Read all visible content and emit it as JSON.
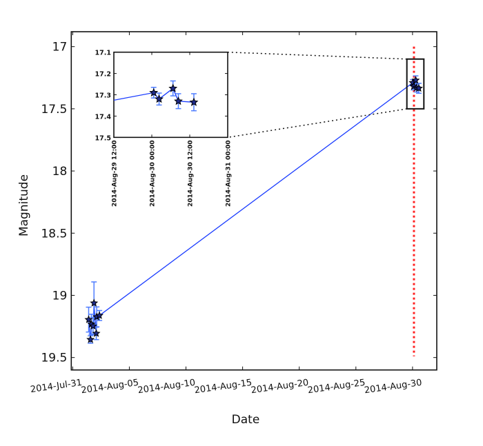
{
  "chart_data": [
    {
      "type": "scatter",
      "panel": "main",
      "xlabel": "Date",
      "ylabel": "Magnitude",
      "x_type": "date",
      "xlim": [
        "2014-07-30T21:00",
        "2014-09-01T03:20"
      ],
      "ylim": [
        16.88,
        19.6
      ],
      "y_inverted": true,
      "xticks": [
        {
          "date": "2014-07-31T00:00",
          "label": "2014-Jul-31"
        },
        {
          "date": "2014-08-05T00:00",
          "label": "2014-Aug-05"
        },
        {
          "date": "2014-08-10T00:00",
          "label": "2014-Aug-10"
        },
        {
          "date": "2014-08-15T00:00",
          "label": "2014-Aug-15"
        },
        {
          "date": "2014-08-20T00:00",
          "label": "2014-Aug-20"
        },
        {
          "date": "2014-08-25T00:00",
          "label": "2014-Aug-25"
        },
        {
          "date": "2014-08-30T00:00",
          "label": "2014-Aug-30"
        }
      ],
      "yticks": [
        {
          "value": 17,
          "label": "17"
        },
        {
          "value": 17.5,
          "label": "17.5"
        },
        {
          "value": 18,
          "label": "18"
        },
        {
          "value": 18.5,
          "label": "18.5"
        },
        {
          "value": 19,
          "label": "19"
        },
        {
          "value": 19.5,
          "label": "19.5"
        }
      ],
      "grid": false,
      "series": [
        {
          "marker": "star",
          "line": true,
          "points": [
            {
              "x": "2014-08-01T09:50",
              "y": 19.195,
              "err": 0.1
            },
            {
              "x": "2014-08-01T13:41",
              "y": 19.355,
              "err": 0.03
            },
            {
              "x": "2014-08-01T15:36",
              "y": 19.232,
              "err": 0.08
            },
            {
              "x": "2014-08-01T19:12",
              "y": 19.247,
              "err": 0.07
            },
            {
              "x": "2014-08-01T21:07",
              "y": 19.062,
              "err": 0.17
            },
            {
              "x": "2014-08-02T01:55",
              "y": 19.306,
              "err": 0.05
            },
            {
              "x": "2014-08-02T02:53",
              "y": 19.173,
              "err": 0.08
            },
            {
              "x": "2014-08-02T08:38",
              "y": 19.162,
              "err": 0.04
            },
            {
              "x": "2014-08-30T00:36",
              "y": 17.29,
              "err": 0.025
            },
            {
              "x": "2014-08-30T02:18",
              "y": 17.32,
              "err": 0.028
            },
            {
              "x": "2014-08-30T06:42",
              "y": 17.27,
              "err": 0.035
            },
            {
              "x": "2014-08-30T08:24",
              "y": 17.33,
              "err": 0.035
            },
            {
              "x": "2014-08-30T13:18",
              "y": 17.335,
              "err": 0.04
            }
          ]
        }
      ],
      "vertical_marker": {
        "x": "2014-08-30T03:00",
        "y_range": [
          17.0,
          19.49
        ],
        "style": "dotted",
        "color": "#ff2020"
      },
      "zoom_box": {
        "x_range": [
          "2014-08-29T12:00",
          "2014-08-31T00:00"
        ],
        "y_range": [
          17.1,
          17.5
        ]
      },
      "colors": {
        "line": "#1a3cff",
        "errorbar": "#4f7dff",
        "marker_fill": "#1e2a8a",
        "marker_edge": "#000000"
      }
    },
    {
      "type": "scatter",
      "panel": "inset",
      "x_type": "date",
      "xlim": [
        "2014-08-29T12:00",
        "2014-08-31T00:00"
      ],
      "ylim": [
        17.1,
        17.5
      ],
      "y_inverted": true,
      "xticks": [
        {
          "date": "2014-08-29T12:00",
          "label": "2014-Aug-29 12:00"
        },
        {
          "date": "2014-08-30T00:00",
          "label": "2014-Aug-30 00:00"
        },
        {
          "date": "2014-08-30T12:00",
          "label": "2014-Aug-30 12:00"
        },
        {
          "date": "2014-08-31T00:00",
          "label": "2014-Aug-31 00:00"
        }
      ],
      "yticks": [
        {
          "value": 17.1,
          "label": "17.1"
        },
        {
          "value": 17.2,
          "label": "17.2"
        },
        {
          "value": 17.3,
          "label": "17.3"
        },
        {
          "value": 17.4,
          "label": "17.4"
        },
        {
          "value": 17.5,
          "label": "17.5"
        }
      ],
      "grid": false
    }
  ]
}
